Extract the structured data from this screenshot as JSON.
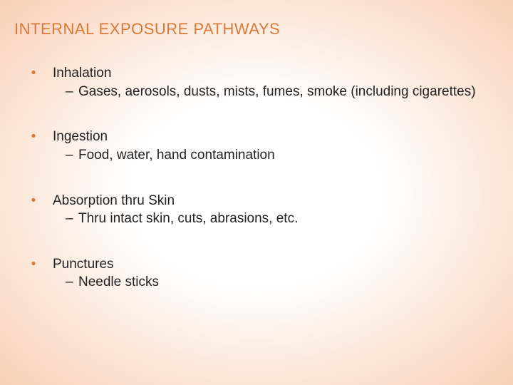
{
  "title": "INTERNAL EXPOSURE PATHWAYS",
  "colors": {
    "accent": "#d97a3a",
    "text": "#222222",
    "bg_inner": "#ffffff",
    "bg_outer": "#f8d0b8"
  },
  "typography": {
    "title_fontsize": 22,
    "body_fontsize": 19,
    "font_family": "Verdana"
  },
  "items": [
    {
      "label": "Inhalation",
      "sub": "Gases, aerosols, dusts, mists, fumes, smoke (including cigarettes)"
    },
    {
      "label": "Ingestion",
      "sub": "Food, water, hand contamination"
    },
    {
      "label": "Absorption thru Skin",
      "sub": "Thru intact skin, cuts, abrasions, etc."
    },
    {
      "label": "Punctures",
      "sub": "Needle sticks"
    }
  ],
  "bullet_glyph": "•",
  "dash_glyph": "–"
}
